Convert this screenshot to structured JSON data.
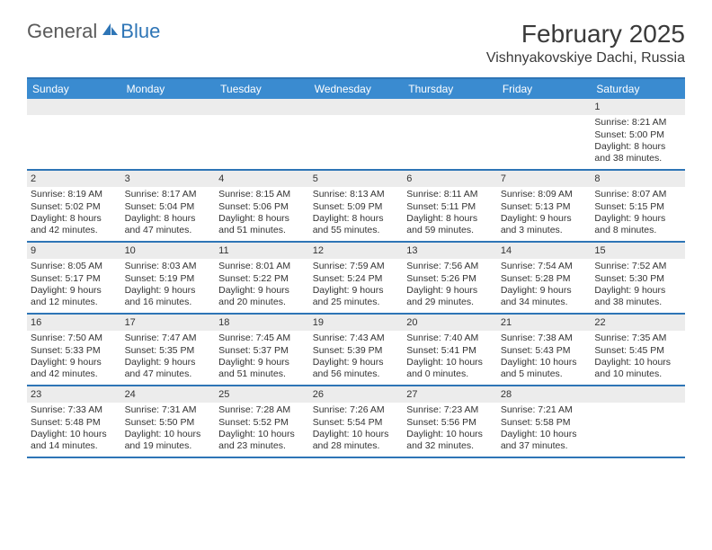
{
  "brand": {
    "part1": "General",
    "part2": "Blue",
    "color_gray": "#5a5a5a",
    "color_blue": "#2e75b6"
  },
  "title": "February 2025",
  "location": "Vishnyakovskiye Dachi, Russia",
  "header_accent": "#3a8bd0",
  "border_color": "#2e75b6",
  "daynum_bg": "#ececec",
  "dow": [
    "Sunday",
    "Monday",
    "Tuesday",
    "Wednesday",
    "Thursday",
    "Friday",
    "Saturday"
  ],
  "weeks": [
    [
      null,
      null,
      null,
      null,
      null,
      null,
      {
        "n": "1",
        "sunrise": "8:21 AM",
        "sunset": "5:00 PM",
        "daylight": "8 hours and 38 minutes."
      }
    ],
    [
      {
        "n": "2",
        "sunrise": "8:19 AM",
        "sunset": "5:02 PM",
        "daylight": "8 hours and 42 minutes."
      },
      {
        "n": "3",
        "sunrise": "8:17 AM",
        "sunset": "5:04 PM",
        "daylight": "8 hours and 47 minutes."
      },
      {
        "n": "4",
        "sunrise": "8:15 AM",
        "sunset": "5:06 PM",
        "daylight": "8 hours and 51 minutes."
      },
      {
        "n": "5",
        "sunrise": "8:13 AM",
        "sunset": "5:09 PM",
        "daylight": "8 hours and 55 minutes."
      },
      {
        "n": "6",
        "sunrise": "8:11 AM",
        "sunset": "5:11 PM",
        "daylight": "8 hours and 59 minutes."
      },
      {
        "n": "7",
        "sunrise": "8:09 AM",
        "sunset": "5:13 PM",
        "daylight": "9 hours and 3 minutes."
      },
      {
        "n": "8",
        "sunrise": "8:07 AM",
        "sunset": "5:15 PM",
        "daylight": "9 hours and 8 minutes."
      }
    ],
    [
      {
        "n": "9",
        "sunrise": "8:05 AM",
        "sunset": "5:17 PM",
        "daylight": "9 hours and 12 minutes."
      },
      {
        "n": "10",
        "sunrise": "8:03 AM",
        "sunset": "5:19 PM",
        "daylight": "9 hours and 16 minutes."
      },
      {
        "n": "11",
        "sunrise": "8:01 AM",
        "sunset": "5:22 PM",
        "daylight": "9 hours and 20 minutes."
      },
      {
        "n": "12",
        "sunrise": "7:59 AM",
        "sunset": "5:24 PM",
        "daylight": "9 hours and 25 minutes."
      },
      {
        "n": "13",
        "sunrise": "7:56 AM",
        "sunset": "5:26 PM",
        "daylight": "9 hours and 29 minutes."
      },
      {
        "n": "14",
        "sunrise": "7:54 AM",
        "sunset": "5:28 PM",
        "daylight": "9 hours and 34 minutes."
      },
      {
        "n": "15",
        "sunrise": "7:52 AM",
        "sunset": "5:30 PM",
        "daylight": "9 hours and 38 minutes."
      }
    ],
    [
      {
        "n": "16",
        "sunrise": "7:50 AM",
        "sunset": "5:33 PM",
        "daylight": "9 hours and 42 minutes."
      },
      {
        "n": "17",
        "sunrise": "7:47 AM",
        "sunset": "5:35 PM",
        "daylight": "9 hours and 47 minutes."
      },
      {
        "n": "18",
        "sunrise": "7:45 AM",
        "sunset": "5:37 PM",
        "daylight": "9 hours and 51 minutes."
      },
      {
        "n": "19",
        "sunrise": "7:43 AM",
        "sunset": "5:39 PM",
        "daylight": "9 hours and 56 minutes."
      },
      {
        "n": "20",
        "sunrise": "7:40 AM",
        "sunset": "5:41 PM",
        "daylight": "10 hours and 0 minutes."
      },
      {
        "n": "21",
        "sunrise": "7:38 AM",
        "sunset": "5:43 PM",
        "daylight": "10 hours and 5 minutes."
      },
      {
        "n": "22",
        "sunrise": "7:35 AM",
        "sunset": "5:45 PM",
        "daylight": "10 hours and 10 minutes."
      }
    ],
    [
      {
        "n": "23",
        "sunrise": "7:33 AM",
        "sunset": "5:48 PM",
        "daylight": "10 hours and 14 minutes."
      },
      {
        "n": "24",
        "sunrise": "7:31 AM",
        "sunset": "5:50 PM",
        "daylight": "10 hours and 19 minutes."
      },
      {
        "n": "25",
        "sunrise": "7:28 AM",
        "sunset": "5:52 PM",
        "daylight": "10 hours and 23 minutes."
      },
      {
        "n": "26",
        "sunrise": "7:26 AM",
        "sunset": "5:54 PM",
        "daylight": "10 hours and 28 minutes."
      },
      {
        "n": "27",
        "sunrise": "7:23 AM",
        "sunset": "5:56 PM",
        "daylight": "10 hours and 32 minutes."
      },
      {
        "n": "28",
        "sunrise": "7:21 AM",
        "sunset": "5:58 PM",
        "daylight": "10 hours and 37 minutes."
      },
      null
    ]
  ],
  "labels": {
    "sunrise": "Sunrise:",
    "sunset": "Sunset:",
    "daylight": "Daylight:"
  }
}
